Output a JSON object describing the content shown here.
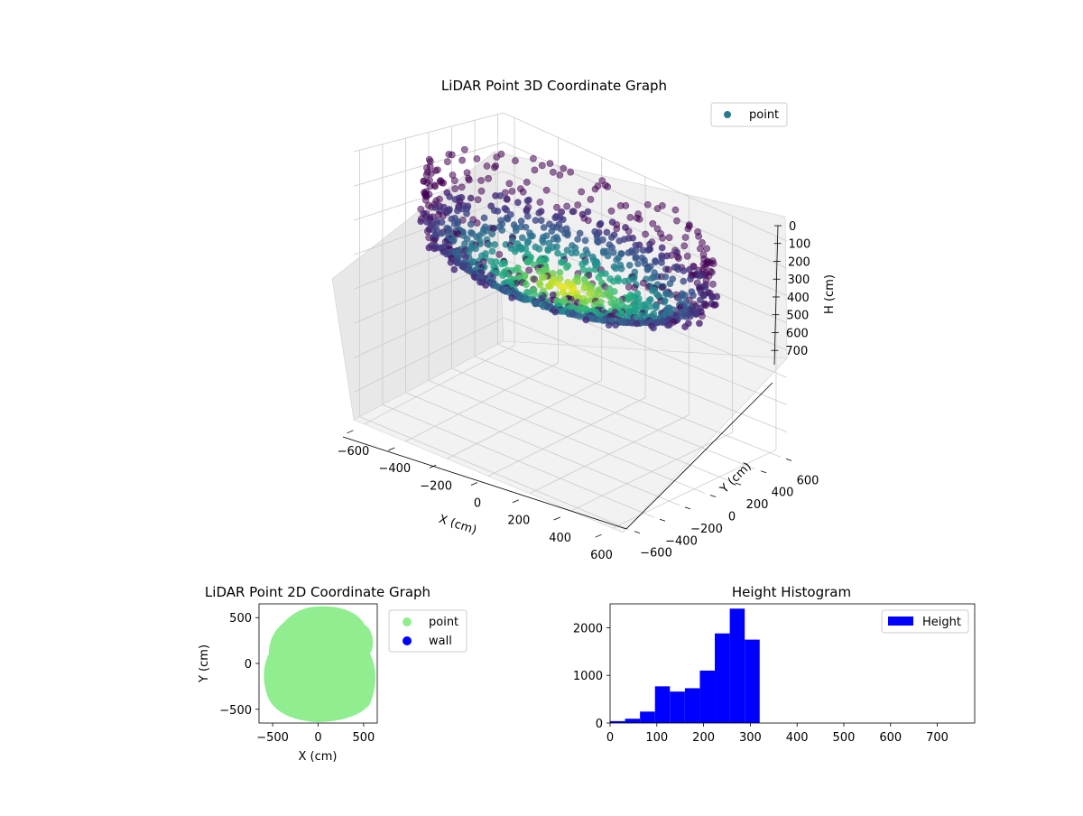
{
  "chart_data": [
    {
      "type": "scatter3d",
      "title": "LiDAR Point 3D Coordinate Graph",
      "xlabel": "X (cm)",
      "ylabel": "Y (cm)",
      "zlabel": "H (cm)",
      "xticks": [
        "−600",
        "−400",
        "−200",
        "0",
        "200",
        "400",
        "600"
      ],
      "yticks": [
        "600",
        "400",
        "200",
        "0",
        "−200",
        "−400",
        "−600"
      ],
      "zticks": [
        "0",
        "100",
        "200",
        "300",
        "400",
        "500",
        "600",
        "700"
      ],
      "xlim": [
        -650,
        650
      ],
      "ylim": [
        -650,
        650
      ],
      "zlim": [
        0,
        780
      ],
      "z_inverted": true,
      "colormap": "viridis",
      "legend": {
        "label": "point",
        "color": "#2a788e",
        "position": "top-right"
      },
      "grid": true,
      "shape": "bowl of points, rim radius ~600 cm at ~200-300 cm height, floor near ~300 cm"
    },
    {
      "type": "scatter",
      "title": "LiDAR Point 2D Coordinate Graph",
      "xlabel": "X (cm)",
      "ylabel": "Y (cm)",
      "xticks": [
        "−500",
        "0",
        "500"
      ],
      "yticks": [
        "500",
        "0",
        "−500"
      ],
      "xlim": [
        -650,
        650
      ],
      "ylim": [
        -650,
        650
      ],
      "series": [
        {
          "name": "point",
          "color": "#90ee90"
        },
        {
          "name": "wall",
          "color": "#0000ff"
        }
      ],
      "legend_position": "outside-right"
    },
    {
      "type": "bar",
      "title": "Height Histogram",
      "xticks": [
        "0",
        "100",
        "200",
        "300",
        "400",
        "500",
        "600",
        "700"
      ],
      "yticks": [
        "0",
        "1000",
        "2000"
      ],
      "xlim": [
        0,
        780
      ],
      "ylim": [
        0,
        2500
      ],
      "bin_edges": [
        0,
        32,
        64,
        96,
        128,
        160,
        192,
        224,
        256,
        288,
        320
      ],
      "values": [
        40,
        90,
        240,
        770,
        660,
        730,
        1100,
        1880,
        2400,
        1750
      ],
      "series": [
        {
          "name": "Height",
          "color": "#0000ff"
        }
      ],
      "legend_position": "top-right"
    }
  ]
}
